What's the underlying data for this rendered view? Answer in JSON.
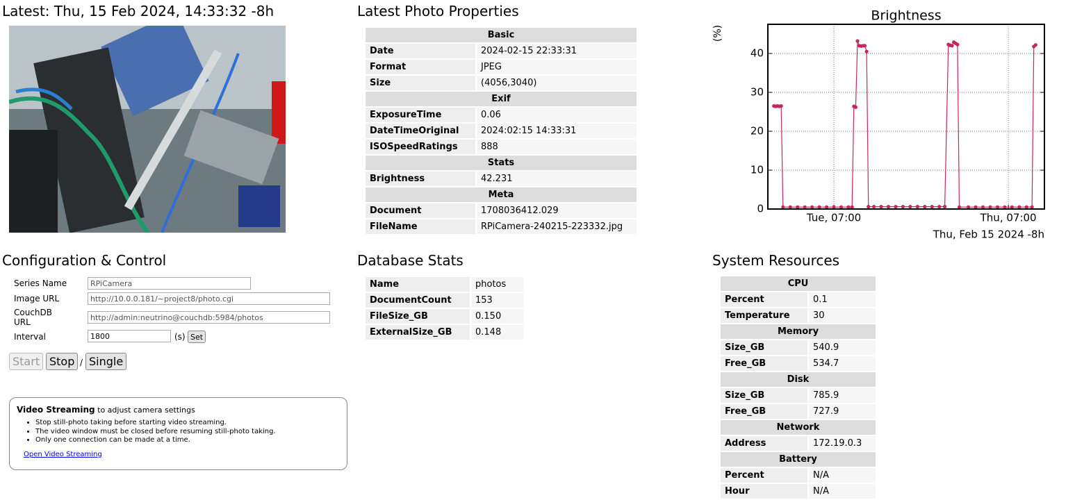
{
  "latest": {
    "title": "Latest: Thu, 15 Feb 2024, 14:33:32 -8h"
  },
  "properties": {
    "title": "Latest Photo Properties",
    "sections": [
      {
        "heading": "Basic",
        "rows": [
          [
            "Date",
            "2024-02-15 22:33:31"
          ],
          [
            "Format",
            "JPEG"
          ],
          [
            "Size",
            "(4056,3040)"
          ]
        ]
      },
      {
        "heading": "Exif",
        "rows": [
          [
            "ExposureTime",
            "0.06"
          ],
          [
            "DateTimeOriginal",
            "2024:02:15 14:33:31"
          ],
          [
            "ISOSpeedRatings",
            "888"
          ]
        ]
      },
      {
        "heading": "Stats",
        "rows": [
          [
            "Brightness",
            "42.231"
          ]
        ]
      },
      {
        "heading": "Meta",
        "rows": [
          [
            "Document",
            "1708036412.029"
          ],
          [
            "FileName",
            "RPiCamera-240215-223332.jpg"
          ]
        ]
      }
    ]
  },
  "chart_data": {
    "type": "line",
    "title": "Brightness",
    "y_label": "(%)",
    "x_label": "Thu, Feb 15 2024 -8h",
    "x": [
      "2024-02-12T14:30",
      "2024-02-12T15:00",
      "2024-02-12T15:30",
      "2024-02-12T16:00",
      "2024-02-12T16:30",
      "2024-02-12T17:00",
      "2024-02-12T19:00",
      "2024-02-12T21:00",
      "2024-02-12T23:00",
      "2024-02-13T01:00",
      "2024-02-13T03:00",
      "2024-02-13T05:00",
      "2024-02-13T07:00",
      "2024-02-13T09:00",
      "2024-02-13T11:00",
      "2024-02-13T12:00",
      "2024-02-13T12:30",
      "2024-02-13T13:00",
      "2024-02-13T13:30",
      "2024-02-13T14:00",
      "2024-02-13T14:30",
      "2024-02-13T15:00",
      "2024-02-13T15:30",
      "2024-02-13T16:00",
      "2024-02-13T16:30",
      "2024-02-13T18:00",
      "2024-02-13T20:00",
      "2024-02-13T22:00",
      "2024-02-14T00:00",
      "2024-02-14T02:00",
      "2024-02-14T04:00",
      "2024-02-14T06:00",
      "2024-02-14T08:00",
      "2024-02-14T10:00",
      "2024-02-14T12:00",
      "2024-02-14T13:30",
      "2024-02-14T14:30",
      "2024-02-14T15:00",
      "2024-02-14T15:30",
      "2024-02-14T16:00",
      "2024-02-14T16:30",
      "2024-02-14T17:00",
      "2024-02-14T17:30",
      "2024-02-14T20:00",
      "2024-02-14T22:00",
      "2024-02-15T00:00",
      "2024-02-15T02:00",
      "2024-02-15T04:00",
      "2024-02-15T06:00",
      "2024-02-15T08:00",
      "2024-02-15T10:00",
      "2024-02-15T12:00",
      "2024-02-15T13:30",
      "2024-02-15T14:00",
      "2024-02-15T14:30"
    ],
    "series": [
      {
        "color": "#c8265a",
        "values": [
          26.5,
          26.4,
          26.5,
          26.4,
          26.5,
          0.5,
          0.5,
          0.5,
          0.5,
          0.5,
          0.5,
          0.5,
          0.5,
          0.5,
          0.5,
          0.5,
          26.4,
          26.2,
          43.2,
          42,
          41.9,
          42,
          42,
          40.5,
          0.6,
          0.6,
          0.6,
          0.6,
          0.6,
          0.6,
          0.6,
          0.6,
          0.6,
          0.6,
          0.6,
          0.6,
          42.3,
          42.1,
          42,
          42.9,
          42.6,
          42.3,
          0.5,
          0.5,
          0.5,
          0.5,
          0.5,
          0.5,
          0.5,
          0.5,
          0.5,
          0.5,
          0.5,
          41.8,
          42.2
        ]
      }
    ],
    "xlim": [
      "2024-02-12T12:50",
      "2024-02-15T16:55"
    ],
    "xticks": [
      {
        "value": "2024-02-13T07:00",
        "label": "Tue, 07:00"
      },
      {
        "value": "2024-02-15T07:00",
        "label": "Thu, 07:00"
      }
    ],
    "ylim": [
      0,
      47.5
    ],
    "yticks": [
      0,
      10,
      20,
      30,
      40
    ],
    "grid": true
  },
  "config": {
    "title": "Configuration & Control",
    "fields": [
      {
        "label": "Series Name",
        "value": "RPiCamera"
      },
      {
        "label": "Image URL",
        "value": "http://10.0.0.181/~project8/photo.cgi"
      },
      {
        "label": "CouchDB URL",
        "value": "http://admin:neutrino@couchdb:5984/photos"
      },
      {
        "label": "Interval",
        "value": "1800"
      }
    ],
    "interval_unit": "(s)",
    "set_button": "Set",
    "buttons": [
      "Start",
      "Stop",
      "Single"
    ],
    "separator": "/",
    "video": {
      "heading": "Video Streaming",
      "subtitle": "to adjust camera settings",
      "items": [
        "Stop still-photo taking before starting video streaming.",
        "The video window must be closed before resuming still-photo taking.",
        "Only one connection can be made at a time."
      ],
      "link": "Open Video Streaming"
    }
  },
  "database": {
    "title": "Database Stats",
    "rows": [
      [
        "Name",
        "photos"
      ],
      [
        "DocumentCount",
        "153"
      ],
      [
        "FileSize_GB",
        "0.150"
      ],
      [
        "ExternalSize_GB",
        "0.148"
      ]
    ]
  },
  "system": {
    "title": "System Resources",
    "sections": [
      {
        "heading": "CPU",
        "rows": [
          [
            "Percent",
            "0.1"
          ],
          [
            "Temperature",
            "30"
          ]
        ]
      },
      {
        "heading": "Memory",
        "rows": [
          [
            "Size_GB",
            "540.9"
          ],
          [
            "Free_GB",
            "534.7"
          ]
        ]
      },
      {
        "heading": "Disk",
        "rows": [
          [
            "Size_GB",
            "785.9"
          ],
          [
            "Free_GB",
            "727.9"
          ]
        ]
      },
      {
        "heading": "Network",
        "rows": [
          [
            "Address",
            "172.19.0.3"
          ]
        ]
      },
      {
        "heading": "Battery",
        "rows": [
          [
            "Percent",
            "N/A"
          ],
          [
            "Hour",
            "N/A"
          ]
        ]
      }
    ]
  }
}
